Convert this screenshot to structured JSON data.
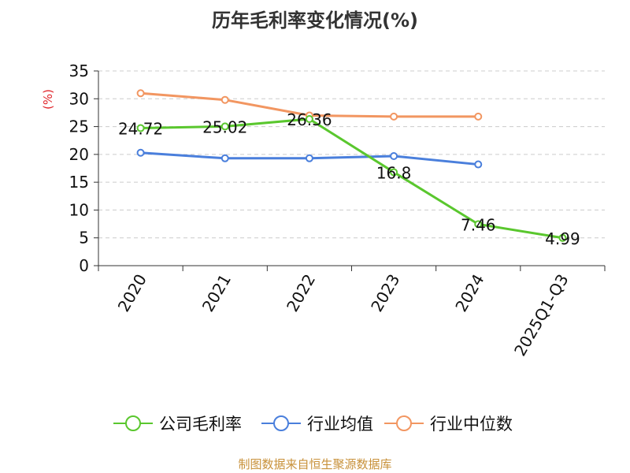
{
  "chart_data": {
    "type": "line",
    "title": "历年毛利率变化情况(%)",
    "ylabel": "(%)",
    "xlabel": "",
    "categories": [
      "2020",
      "2021",
      "2022",
      "2023",
      "2024",
      "2025Q1-Q3"
    ],
    "ylim": [
      0,
      35
    ],
    "yticks": [
      0,
      5,
      10,
      15,
      20,
      25,
      30,
      35
    ],
    "grid": true,
    "legend_position": "bottom",
    "series": [
      {
        "name": "公司毛利率",
        "color": "#5ac72e",
        "values": [
          24.72,
          25.02,
          26.36,
          16.8,
          7.46,
          4.99
        ],
        "labels": [
          "24.72",
          "25.02",
          "26.36",
          "16.8",
          "7.46",
          "4.99"
        ]
      },
      {
        "name": "行业均值",
        "color": "#4a7fdc",
        "values": [
          20.3,
          19.3,
          19.3,
          19.7,
          18.2,
          null
        ],
        "labels": []
      },
      {
        "name": "行业中位数",
        "color": "#f29661",
        "values": [
          31.0,
          29.8,
          27.0,
          26.8,
          26.8,
          null
        ],
        "labels": []
      }
    ]
  },
  "footer": {
    "source": "制图数据来自恒生聚源数据库"
  },
  "colors": {
    "ylabel_color": "#e0262b",
    "grid_color": "#cccccc",
    "axis_color": "#333333"
  }
}
